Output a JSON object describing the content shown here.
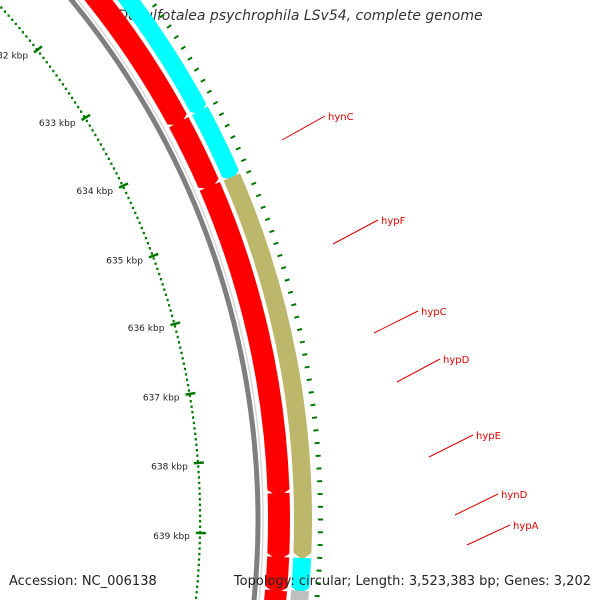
{
  "title": "Desulfotalea psychrophila LSv54, complete genome",
  "footer": {
    "accession": "Accession: NC_006138",
    "summary": "Topology: circular; Length: 3,523,383 bp; Genes: 3,202"
  },
  "colors": {
    "backbone": "#888888",
    "forward_cds": "#ff0000",
    "cds_cyan": "#00ffff",
    "cds_khaki": "#bdb76b",
    "cds_gray": "#bfbfbf",
    "cds_orange": "#ffa500",
    "tick": "#007700",
    "label": "#dd0000"
  },
  "kbp_ticks": [
    "632 kbp",
    "633 kbp",
    "634 kbp",
    "635 kbp",
    "636 kbp",
    "637 kbp",
    "638 kbp",
    "639 kbp"
  ],
  "gene_labels": [
    "hynC",
    "hypF",
    "hypC",
    "hypD",
    "hypE",
    "hynD",
    "hypA"
  ]
}
